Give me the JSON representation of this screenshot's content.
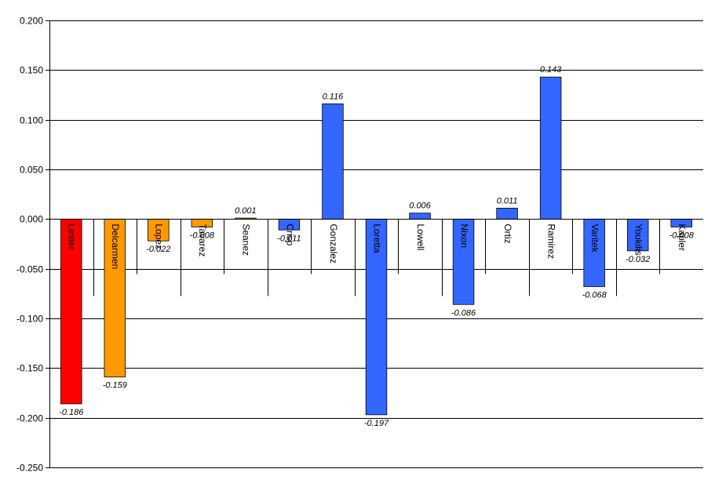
{
  "chart_data": {
    "type": "bar",
    "title": "",
    "xlabel": "",
    "ylabel": "",
    "ylim": [
      -0.25,
      0.2
    ],
    "ytick_step": 0.05,
    "yticks": [
      "0.200",
      "0.150",
      "0.100",
      "0.050",
      "0.000",
      "-0.050",
      "-0.100",
      "-0.150",
      "-0.200",
      "-0.250"
    ],
    "grid": true,
    "legend": "none",
    "categories": [
      "Lester",
      "Delcarmen",
      "Lopez",
      "Tavarez",
      "Seanez",
      "Crisp",
      "Gonzalez",
      "Loretta",
      "Lowell",
      "Nixon",
      "Ortiz",
      "Ramirez",
      "Varitek",
      "Youkilis",
      "Kapler"
    ],
    "values": [
      -0.186,
      -0.159,
      -0.022,
      -0.008,
      0.001,
      -0.011,
      0.116,
      -0.197,
      0.006,
      -0.086,
      0.011,
      0.143,
      -0.068,
      -0.032,
      -0.008
    ],
    "value_labels": [
      "-0.186",
      "-0.159",
      "-0.022",
      "-0.008",
      "0.001",
      "-0.011",
      "0.116",
      "-0.197",
      "0.006",
      "-0.086",
      "0.011",
      "0.143",
      "-0.068",
      "-0.032",
      "-0.008"
    ],
    "colors": [
      "#ff0000",
      "#ff9900",
      "#ff9900",
      "#ff9900",
      "#ff9900",
      "#3366ff",
      "#3366ff",
      "#3366ff",
      "#3366ff",
      "#3366ff",
      "#3366ff",
      "#3366ff",
      "#3366ff",
      "#3366ff",
      "#3366ff"
    ]
  }
}
